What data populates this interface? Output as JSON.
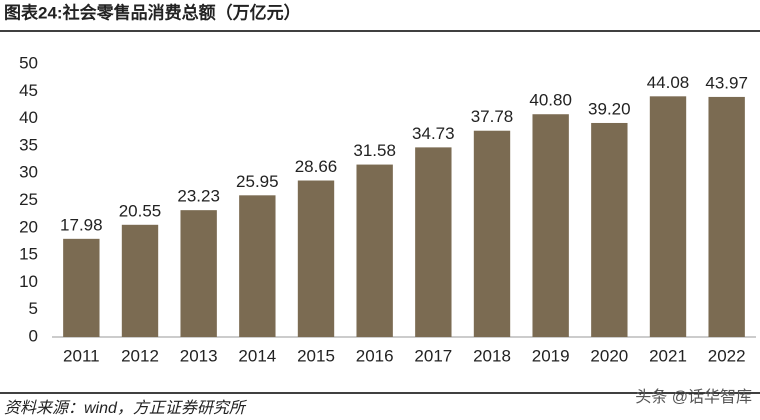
{
  "chart_data": {
    "type": "bar",
    "title": "图表24:社会零售品消费总额（万亿元）",
    "source": "资料来源：wind，方正证券研究所",
    "watermark": "头条 @话华智库",
    "categories": [
      "2011",
      "2012",
      "2013",
      "2014",
      "2015",
      "2016",
      "2017",
      "2018",
      "2019",
      "2020",
      "2021",
      "2022"
    ],
    "values": [
      17.98,
      20.55,
      23.23,
      25.95,
      28.66,
      31.58,
      34.73,
      37.78,
      40.8,
      39.2,
      44.08,
      43.97
    ],
    "value_labels": [
      "17.98",
      "20.55",
      "23.23",
      "25.95",
      "28.66",
      "31.58",
      "34.73",
      "37.78",
      "40.80",
      "39.20",
      "44.08",
      "43.97"
    ],
    "color": "#7b6b52",
    "ylim": [
      0,
      50
    ],
    "yticks": [
      0,
      5,
      10,
      15,
      20,
      25,
      30,
      35,
      40,
      45,
      50
    ],
    "grid": false
  }
}
